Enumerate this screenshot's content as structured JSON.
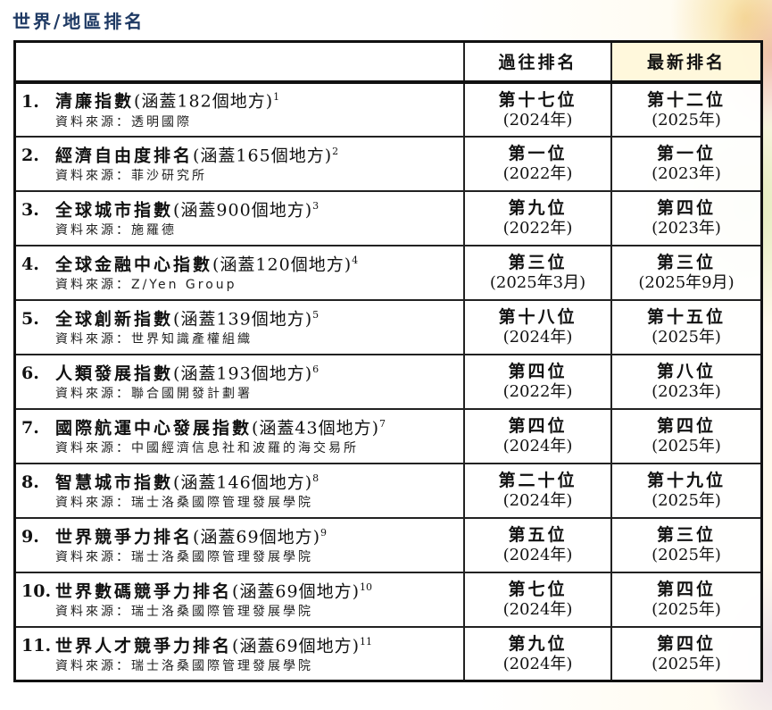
{
  "title": "世界/地區排名",
  "headers": {
    "past": "過往排名",
    "latest": "最新排名"
  },
  "rows": [
    {
      "num": "1.",
      "name": "清廉指數",
      "coverage": "(涵蓋182個地方)",
      "note": "1",
      "source": "資料來源：透明國際",
      "past_rank": "第十七位",
      "past_year": "(2024年)",
      "latest_rank": "第十二位",
      "latest_year": "(2025年)"
    },
    {
      "num": "2.",
      "name": "經濟自由度排名",
      "coverage": "(涵蓋165個地方)",
      "note": "2",
      "source": "資料來源：菲沙研究所",
      "past_rank": "第一位",
      "past_year": "(2022年)",
      "latest_rank": "第一位",
      "latest_year": "(2023年)"
    },
    {
      "num": "3.",
      "name": "全球城市指數",
      "coverage": "(涵蓋900個地方)",
      "note": "3",
      "source": "資料來源：施羅德",
      "past_rank": "第九位",
      "past_year": "(2022年)",
      "latest_rank": "第四位",
      "latest_year": "(2023年)"
    },
    {
      "num": "4.",
      "name": "全球金融中心指數",
      "coverage": "(涵蓋120個地方)",
      "note": "4",
      "source": "資料來源：Z/Yen Group",
      "past_rank": "第三位",
      "past_year": "(2025年3月)",
      "latest_rank": "第三位",
      "latest_year": "(2025年9月)"
    },
    {
      "num": "5.",
      "name": "全球創新指數",
      "coverage": "(涵蓋139個地方)",
      "note": "5",
      "source": "資料來源：世界知識產權組織",
      "past_rank": "第十八位",
      "past_year": "(2024年)",
      "latest_rank": "第十五位",
      "latest_year": "(2025年)"
    },
    {
      "num": "6.",
      "name": "人類發展指數",
      "coverage": "(涵蓋193個地方)",
      "note": "6",
      "source": "資料來源：聯合國開發計劃署",
      "past_rank": "第四位",
      "past_year": "(2022年)",
      "latest_rank": "第八位",
      "latest_year": "(2023年)"
    },
    {
      "num": "7.",
      "name": "國際航運中心發展指數",
      "coverage": "(涵蓋43個地方)",
      "note": "7",
      "source": "資料來源：中國經濟信息社和波羅的海交易所",
      "past_rank": "第四位",
      "past_year": "(2024年)",
      "latest_rank": "第四位",
      "latest_year": "(2025年)"
    },
    {
      "num": "8.",
      "name": "智慧城市指數",
      "coverage": "(涵蓋146個地方)",
      "note": "8",
      "source": "資料來源：瑞士洛桑國際管理發展學院",
      "past_rank": "第二十位",
      "past_year": "(2024年)",
      "latest_rank": "第十九位",
      "latest_year": "(2025年)"
    },
    {
      "num": "9.",
      "name": "世界競爭力排名",
      "coverage": "(涵蓋69個地方)",
      "note": "9",
      "source": "資料來源：瑞士洛桑國際管理發展學院",
      "past_rank": "第五位",
      "past_year": "(2024年)",
      "latest_rank": "第三位",
      "latest_year": "(2025年)"
    },
    {
      "num": "10.",
      "name": "世界數碼競爭力排名",
      "coverage": "(涵蓋69個地方)",
      "note": "10",
      "source": "資料來源：瑞士洛桑國際管理發展學院",
      "past_rank": "第七位",
      "past_year": "(2024年)",
      "latest_rank": "第四位",
      "latest_year": "(2025年)"
    },
    {
      "num": "11.",
      "name": "世界人才競爭力排名",
      "coverage": "(涵蓋69個地方)",
      "note": "11",
      "source": "資料來源：瑞士洛桑國際管理發展學院",
      "past_rank": "第九位",
      "past_year": "(2024年)",
      "latest_rank": "第四位",
      "latest_year": "(2025年)"
    }
  ]
}
